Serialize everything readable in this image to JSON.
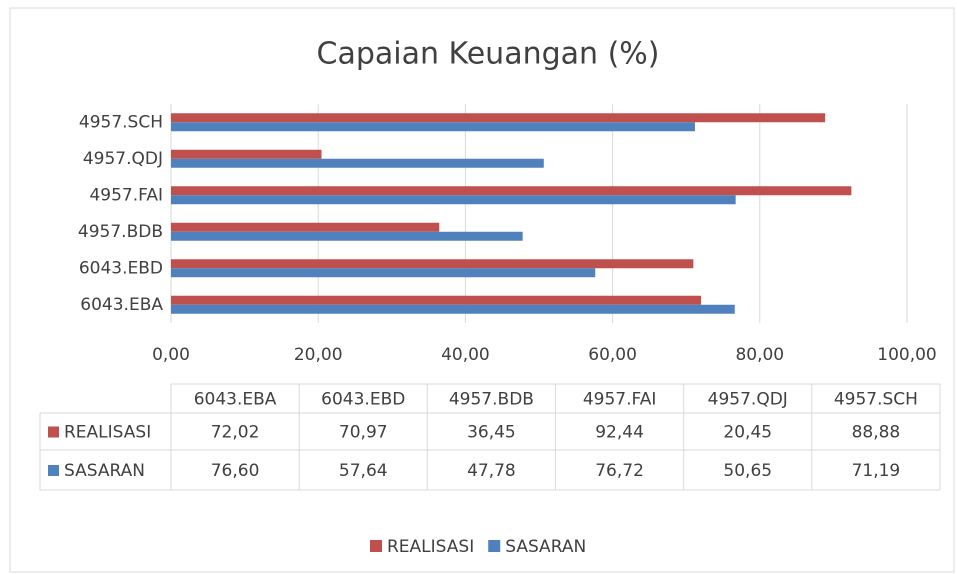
{
  "chart_data": {
    "type": "bar",
    "orientation": "horizontal",
    "title": "Capaian Keuangan (%)",
    "categories": [
      "6043.EBA",
      "6043.EBD",
      "4957.BDB",
      "4957.FAI",
      "4957.QDJ",
      "4957.SCH"
    ],
    "series": [
      {
        "name": "REALISASI",
        "color": "#c0504d",
        "values": [
          72.02,
          70.97,
          36.45,
          92.44,
          20.45,
          88.88
        ],
        "value_labels": [
          "72,02",
          "70,97",
          "36,45",
          "92,44",
          "20,45",
          "88,88"
        ]
      },
      {
        "name": "SASARAN",
        "color": "#4f81bd",
        "values": [
          76.6,
          57.64,
          47.78,
          76.72,
          50.65,
          71.19
        ],
        "value_labels": [
          "76,60",
          "57,64",
          "47,78",
          "76,72",
          "50,65",
          "71,19"
        ]
      }
    ],
    "xlim": [
      0,
      100
    ],
    "xticks": [
      {
        "value": 0,
        "label": "0,00"
      },
      {
        "value": 20,
        "label": "20,00"
      },
      {
        "value": 40,
        "label": "40,00"
      },
      {
        "value": 60,
        "label": "60,00"
      },
      {
        "value": 80,
        "label": "80,00"
      },
      {
        "value": 100,
        "label": "100,00"
      }
    ],
    "grid": true,
    "legend": "bottom",
    "data_table": true
  }
}
